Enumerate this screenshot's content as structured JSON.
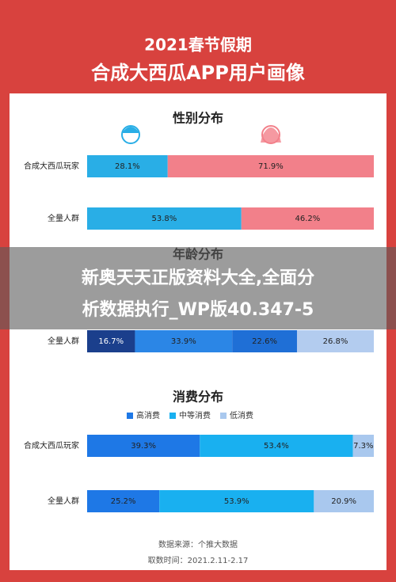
{
  "header": {
    "title": "2021春节假期",
    "subtitle": "合成大西瓜APP用户画像"
  },
  "chart_data": [
    {
      "type": "bar",
      "stacked": true,
      "orientation": "horizontal",
      "title": "性别分布",
      "categories": [
        "合成大西瓜玩家",
        "全量人群"
      ],
      "xlim": [
        0,
        100
      ],
      "series": [
        {
          "color": "#29aee6",
          "values": [
            28.1,
            53.8
          ],
          "value_labels": [
            "28.1%",
            "53.8%"
          ]
        },
        {
          "color": "#f2808a",
          "values": [
            71.9,
            46.2
          ],
          "value_labels": [
            "71.9%",
            "46.2%"
          ]
        }
      ]
    },
    {
      "type": "bar",
      "stacked": true,
      "orientation": "horizontal",
      "title": "年龄分布",
      "categories": [
        "全量人群"
      ],
      "xlim": [
        0,
        100
      ],
      "series": [
        {
          "color": "#1b3f8c",
          "values": [
            16.7
          ],
          "value_labels": [
            "16.7%"
          ]
        },
        {
          "color": "#2b86e6",
          "values": [
            33.9
          ],
          "value_labels": [
            "33.9%"
          ]
        },
        {
          "color": "#1f6fd6",
          "values": [
            22.6
          ],
          "value_labels": [
            "22.6%"
          ]
        },
        {
          "color": "#b3ccef",
          "values": [
            26.8
          ],
          "value_labels": [
            "26.8%"
          ]
        }
      ]
    },
    {
      "type": "bar",
      "stacked": true,
      "orientation": "horizontal",
      "title": "消费分布",
      "categories": [
        "合成大西瓜玩家",
        "全量人群"
      ],
      "xlim": [
        0,
        100
      ],
      "series": [
        {
          "name": "高消费",
          "color": "#1e78e6",
          "values": [
            39.3,
            25.2
          ],
          "value_labels": [
            "39.3%",
            "25.2%"
          ]
        },
        {
          "name": "中等消费",
          "color": "#19b0f0",
          "values": [
            53.4,
            53.9
          ],
          "value_labels": [
            "53.4%",
            "53.9%"
          ]
        },
        {
          "name": "低消费",
          "color": "#a9c8ee",
          "values": [
            7.3,
            20.9
          ],
          "value_labels": [
            "7.3%",
            "20.9%"
          ]
        }
      ]
    }
  ],
  "overlay": {
    "lines": [
      "新奥天天正版资料大全,全面分",
      "析数据执行_WP版40.347-5"
    ]
  },
  "footer": {
    "source": "数据来源：个推大数据",
    "period": "取数时间：2021.2.11-2.17"
  }
}
